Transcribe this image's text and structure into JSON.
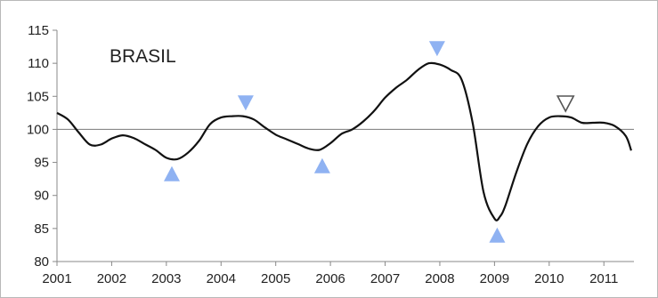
{
  "chart_data": {
    "type": "line",
    "title": "BRASIL",
    "xlabel": "",
    "ylabel": "",
    "xlim": [
      2001.0,
      2011.55
    ],
    "ylim": [
      80,
      115
    ],
    "y_ticks": [
      80,
      85,
      90,
      95,
      100,
      105,
      110,
      115
    ],
    "x_ticks": [
      2001,
      2002,
      2003,
      2004,
      2005,
      2006,
      2007,
      2008,
      2009,
      2010,
      2011
    ],
    "x_tick_labels": [
      "2001",
      "2002",
      "2003",
      "2004",
      "2005",
      "2006",
      "2007",
      "2008",
      "2009",
      "2010",
      "2011"
    ],
    "y_tick_labels": [
      "80",
      "85",
      "90",
      "95",
      "100",
      "105",
      "110",
      "115"
    ],
    "grid": false,
    "reference_line": 100,
    "series": [
      {
        "color": "#111111",
        "x": [
          2001.0,
          2001.2,
          2001.4,
          2001.6,
          2001.8,
          2002.0,
          2002.2,
          2002.4,
          2002.6,
          2002.8,
          2003.0,
          2003.2,
          2003.4,
          2003.6,
          2003.8,
          2004.0,
          2004.2,
          2004.4,
          2004.6,
          2004.8,
          2005.0,
          2005.2,
          2005.4,
          2005.6,
          2005.8,
          2006.0,
          2006.2,
          2006.4,
          2006.6,
          2006.8,
          2007.0,
          2007.2,
          2007.4,
          2007.6,
          2007.8,
          2008.0,
          2008.2,
          2008.4,
          2008.6,
          2008.8,
          2009.0,
          2009.1,
          2009.2,
          2009.4,
          2009.6,
          2009.8,
          2010.0,
          2010.2,
          2010.4,
          2010.6,
          2010.8,
          2011.0,
          2011.2,
          2011.4,
          2011.5
        ],
        "y": [
          102.5,
          101.5,
          99.5,
          97.7,
          97.7,
          98.6,
          99.1,
          98.7,
          97.8,
          96.9,
          95.7,
          95.5,
          96.5,
          98.3,
          100.8,
          101.8,
          102.0,
          102.0,
          101.5,
          100.3,
          99.2,
          98.5,
          97.8,
          97.1,
          96.9,
          97.9,
          99.3,
          100.0,
          101.2,
          102.8,
          104.8,
          106.3,
          107.5,
          109.0,
          110.0,
          109.8,
          109.0,
          107.5,
          101.0,
          90.5,
          86.5,
          86.8,
          88.5,
          93.5,
          97.8,
          100.5,
          101.8,
          102.0,
          101.8,
          101.0,
          101.0,
          101.0,
          100.5,
          99.0,
          96.8
        ]
      }
    ],
    "annotations": [
      {
        "type": "triangle-up",
        "x": 2003.1,
        "y": 93.3,
        "color": "#8fb2f2"
      },
      {
        "type": "triangle-down",
        "x": 2004.45,
        "y": 104.0,
        "color": "#8fb2f2"
      },
      {
        "type": "triangle-up",
        "x": 2005.85,
        "y": 94.5,
        "color": "#8fb2f2"
      },
      {
        "type": "triangle-down",
        "x": 2007.95,
        "y": 112.2,
        "color": "#8fb2f2"
      },
      {
        "type": "triangle-up",
        "x": 2009.05,
        "y": 84.0,
        "color": "#8fb2f2"
      },
      {
        "type": "triangle-down-outline",
        "x": 2010.3,
        "y": 103.9,
        "color": "#555555"
      }
    ],
    "colors": {
      "axis": "#888888",
      "reference_line": "#888888",
      "marker_fill": "#8fb2f2"
    }
  }
}
